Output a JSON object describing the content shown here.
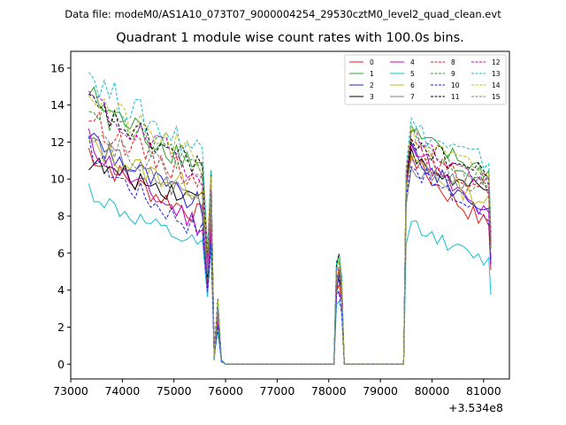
{
  "suptitle": "Data file: modeM0/AS1A10_073T07_9000004254_29530cztM0_level2_quad_clean.evt",
  "chart_data": {
    "type": "line",
    "title": "Quadrant 1 module wise count rates with 100.0s bins.",
    "xlabel": "",
    "ylabel": "",
    "x_offset_label": "+3.534e8",
    "xlim": [
      73000,
      81500
    ],
    "ylim": [
      -0.8,
      16.9
    ],
    "x_ticks": [
      73000,
      74000,
      75000,
      76000,
      77000,
      78000,
      79000,
      80000,
      81000
    ],
    "x_tick_labels": [
      "73000",
      "74000",
      "75000",
      "76000",
      "77000",
      "78000",
      "79000",
      "80000",
      "81000"
    ],
    "y_ticks": [
      0,
      2,
      4,
      6,
      8,
      10,
      12,
      14,
      16
    ],
    "y_tick_labels": [
      "0",
      "2",
      "4",
      "6",
      "8",
      "10",
      "12",
      "14",
      "16"
    ],
    "legend_position": "top-right",
    "segments": [
      {
        "x_start": 73350,
        "x_end": 75550,
        "kind": "decay"
      },
      {
        "x_values": [
          75650,
          75720,
          75780,
          75850,
          75920,
          76000
        ],
        "kind": "dip"
      },
      {
        "x_start": 76000,
        "x_end": 78050,
        "level": 0
      },
      {
        "x_values": [
          78100,
          78150,
          78200,
          78250,
          78300
        ],
        "kind": "bump"
      },
      {
        "x_start": 78300,
        "x_end": 79450,
        "level": 0
      },
      {
        "x_start": 79500,
        "x_end": 81100,
        "kind": "recovery"
      }
    ],
    "series": [
      {
        "name": "0",
        "color": "#e41a1c",
        "dash": false,
        "start": 11.6,
        "mid": 8.0,
        "peak": 11.5,
        "end": 7.5
      },
      {
        "name": "1",
        "color": "#2ca02c",
        "dash": false,
        "start": 14.7,
        "mid": 10.8,
        "peak": 12.6,
        "end": 10.4
      },
      {
        "name": "2",
        "color": "#1f1fe0",
        "dash": false,
        "start": 12.6,
        "mid": 8.5,
        "peak": 11.8,
        "end": 8.3
      },
      {
        "name": "3",
        "color": "#000000",
        "dash": false,
        "start": 11.0,
        "mid": 9.0,
        "peak": 11.3,
        "end": 9.2
      },
      {
        "name": "4",
        "color": "#c000c0",
        "dash": false,
        "start": 12.2,
        "mid": 7.5,
        "peak": 12.4,
        "end": 7.9
      },
      {
        "name": "5",
        "color": "#17becf",
        "dash": false,
        "start": 9.5,
        "mid": 6.3,
        "peak": 7.9,
        "end": 5.5
      },
      {
        "name": "6",
        "color": "#bcbd22",
        "dash": false,
        "start": 12.0,
        "mid": 9.4,
        "peak": 11.4,
        "end": 8.7
      },
      {
        "name": "7",
        "color": "#7f7f7f",
        "dash": false,
        "start": 12.3,
        "mid": 8.9,
        "peak": 10.5,
        "end": 9.7
      },
      {
        "name": "8",
        "color": "#e41a1c",
        "dash": true,
        "start": 13.5,
        "mid": 10.0,
        "peak": 11.8,
        "end": 9.5
      },
      {
        "name": "9",
        "color": "#2ca02c",
        "dash": true,
        "start": 14.3,
        "mid": 10.5,
        "peak": 12.4,
        "end": 10.0
      },
      {
        "name": "10",
        "color": "#1f1fe0",
        "dash": true,
        "start": 11.8,
        "mid": 7.2,
        "peak": 11.0,
        "end": 8.0
      },
      {
        "name": "11",
        "color": "#000000",
        "dash": true,
        "start": 14.2,
        "mid": 10.8,
        "peak": 12.3,
        "end": 10.2
      },
      {
        "name": "12",
        "color": "#c000c0",
        "dash": true,
        "start": 14.6,
        "mid": 10.4,
        "peak": 12.6,
        "end": 9.8
      },
      {
        "name": "13",
        "color": "#17becf",
        "dash": true,
        "start": 15.9,
        "mid": 11.5,
        "peak": 13.0,
        "end": 10.9
      },
      {
        "name": "14",
        "color": "#bcbd22",
        "dash": true,
        "start": 14.9,
        "mid": 10.9,
        "peak": 12.4,
        "end": 10.3
      },
      {
        "name": "15",
        "color": "#7f7f7f",
        "dash": true,
        "start": 12.9,
        "mid": 9.7,
        "peak": 11.5,
        "end": 9.4
      }
    ]
  }
}
